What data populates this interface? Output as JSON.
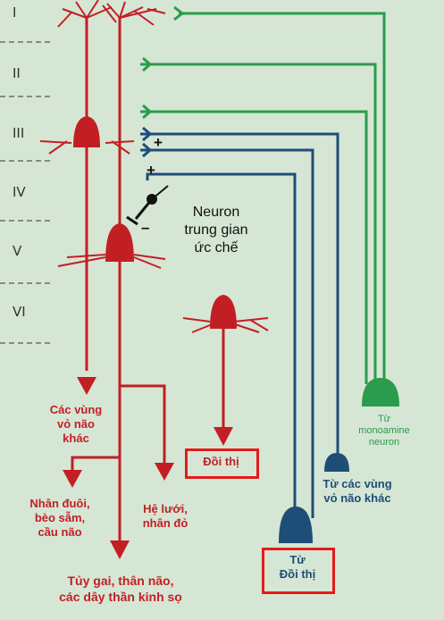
{
  "layers": [
    "I",
    "II",
    "III",
    "IV",
    "V",
    "VI"
  ],
  "labels": {
    "inhibitory_neuron": "Neuron\ntrung gian\nức chế",
    "other_cortex_out": "Các vùng\nvỏ não\nkhác",
    "thalamus_out": "Đồi thị",
    "caudate": "Nhân đuôi,\nbèo sẫm,\ncầu não",
    "reticular": "Hệ lưới,\nnhân đỏ",
    "spinal": "Tủy gai, thân não,\ncác dây thần kinh sọ",
    "from_other_cortex": "Từ các vùng\nvỏ não khác",
    "from_thalamus": "Từ\nĐồi thị",
    "from_monoamine": "Từ\nmonoamine\nneuron"
  },
  "signs": {
    "plus_upper": "+",
    "plus_lower": "+",
    "minus": "–"
  },
  "colors": {
    "red": "#c21f24",
    "blue": "#1e4d78",
    "green": "#2b9b4d",
    "highlight": "#e31b1b",
    "background": "#d6e6d4"
  }
}
